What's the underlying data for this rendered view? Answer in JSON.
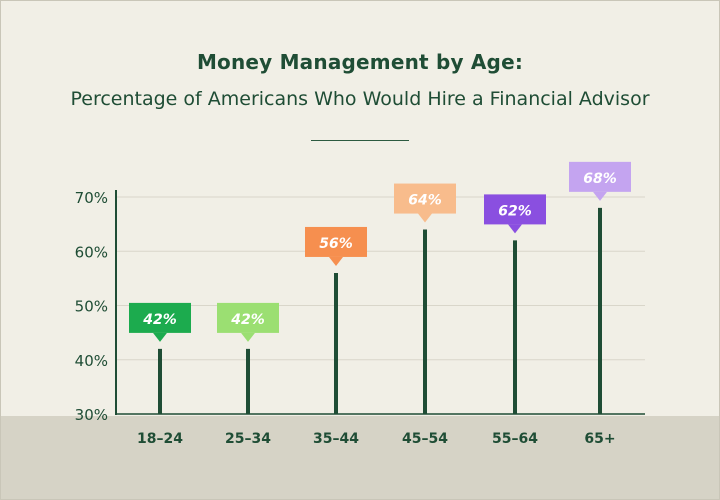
{
  "title": "Money Management by Age:",
  "subtitle": "Percentage of Americans Who Would Hire a Financial Advisor",
  "chart_data": {
    "type": "bar",
    "title": "Money Management by Age:",
    "subtitle": "Percentage of Americans Who Would Hire a Financial Advisor",
    "categories": [
      "18–24",
      "25–34",
      "35–44",
      "45–54",
      "55–64",
      "65+"
    ],
    "values": [
      42,
      42,
      56,
      64,
      62,
      68
    ],
    "data_labels": [
      "42%",
      "42%",
      "56%",
      "64%",
      "62%",
      "68%"
    ],
    "colors": [
      "#1cab4e",
      "#9bdf72",
      "#f68f4f",
      "#f8bc8c",
      "#8a4fe0",
      "#c4a4f0"
    ],
    "bar_color": "#1f4d35",
    "ylim": [
      30,
      70
    ],
    "yticks": [
      30,
      40,
      50,
      60,
      70
    ],
    "ytick_labels": [
      "30%",
      "40%",
      "50%",
      "60%",
      "70%"
    ],
    "grid": true,
    "xlabel": "",
    "ylabel": ""
  }
}
